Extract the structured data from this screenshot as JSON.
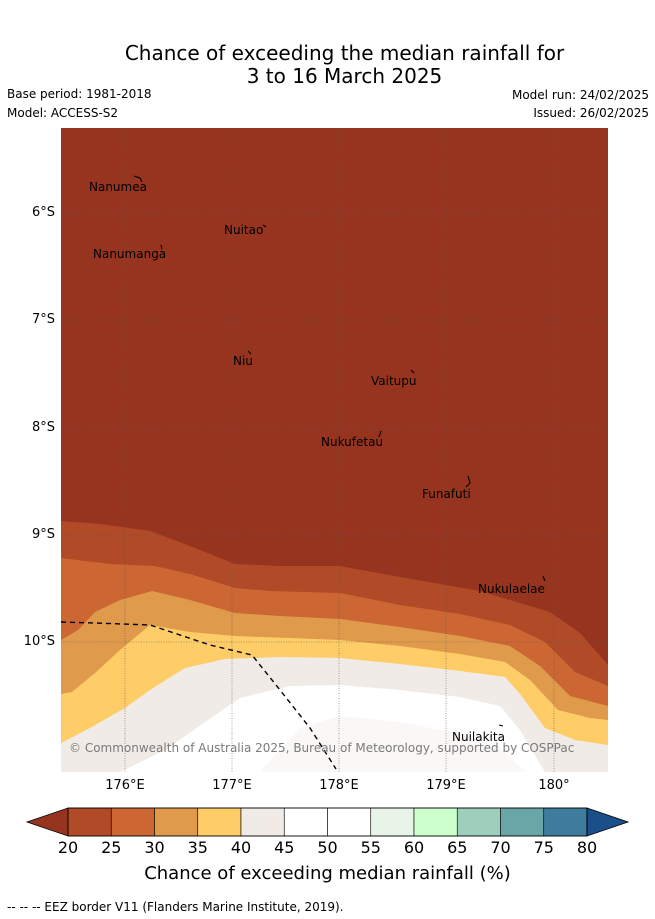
{
  "title": {
    "line1": "Chance of exceeding the median rainfall for",
    "line2": "3 to 16 March 2025"
  },
  "meta": {
    "base_period": "Base period: 1981-2018",
    "model": "Model: ACCESS-S2",
    "model_run": "Model run: 24/02/2025",
    "issued": "Issued: 26/02/2025"
  },
  "map": {
    "lat_labels": [
      "6°S",
      "7°S",
      "8°S",
      "9°S",
      "10°S"
    ],
    "lon_labels": [
      "176°E",
      "177°E",
      "178°E",
      "179°E",
      "180°"
    ],
    "places": [
      "Nanumea",
      "Nuitao",
      "Nanumanga",
      "Niu",
      "Vaitupu",
      "Nukufetau",
      "Funafuti",
      "Nukulaelae",
      "Nuilakita"
    ],
    "copyright": "© Commonwealth of Australia 2025, Bureau of Meteorology, supported by COSPPac",
    "colors": {
      "lt20": "#973420",
      "c20_25": "#b14a26",
      "c25_30": "#cc6633",
      "c30_35": "#e09a4c",
      "c35_40": "#fecd68",
      "c40_45": "#f0ebe6",
      "c45_50": "#ffffff",
      "grid": "#555555",
      "eez": "#000000"
    }
  },
  "colorbar": {
    "ticks": [
      "20",
      "25",
      "30",
      "35",
      "40",
      "45",
      "50",
      "55",
      "60",
      "65",
      "70",
      "75",
      "80"
    ],
    "colors": [
      "#b14a26",
      "#cc6633",
      "#e09a4c",
      "#fecd68",
      "#f0ebe6",
      "#ffffff",
      "#ffffff",
      "#e8f4e8",
      "#ccffcc",
      "#9ecfbc",
      "#6aa6a8",
      "#3f7b9d"
    ],
    "under_color": "#973420",
    "over_color": "#1b4f8a",
    "label": "Chance of exceeding median rainfall (%)"
  },
  "footnote": "--  --  -- EEZ border V11 (Flanders Marine Institute, 2019)."
}
